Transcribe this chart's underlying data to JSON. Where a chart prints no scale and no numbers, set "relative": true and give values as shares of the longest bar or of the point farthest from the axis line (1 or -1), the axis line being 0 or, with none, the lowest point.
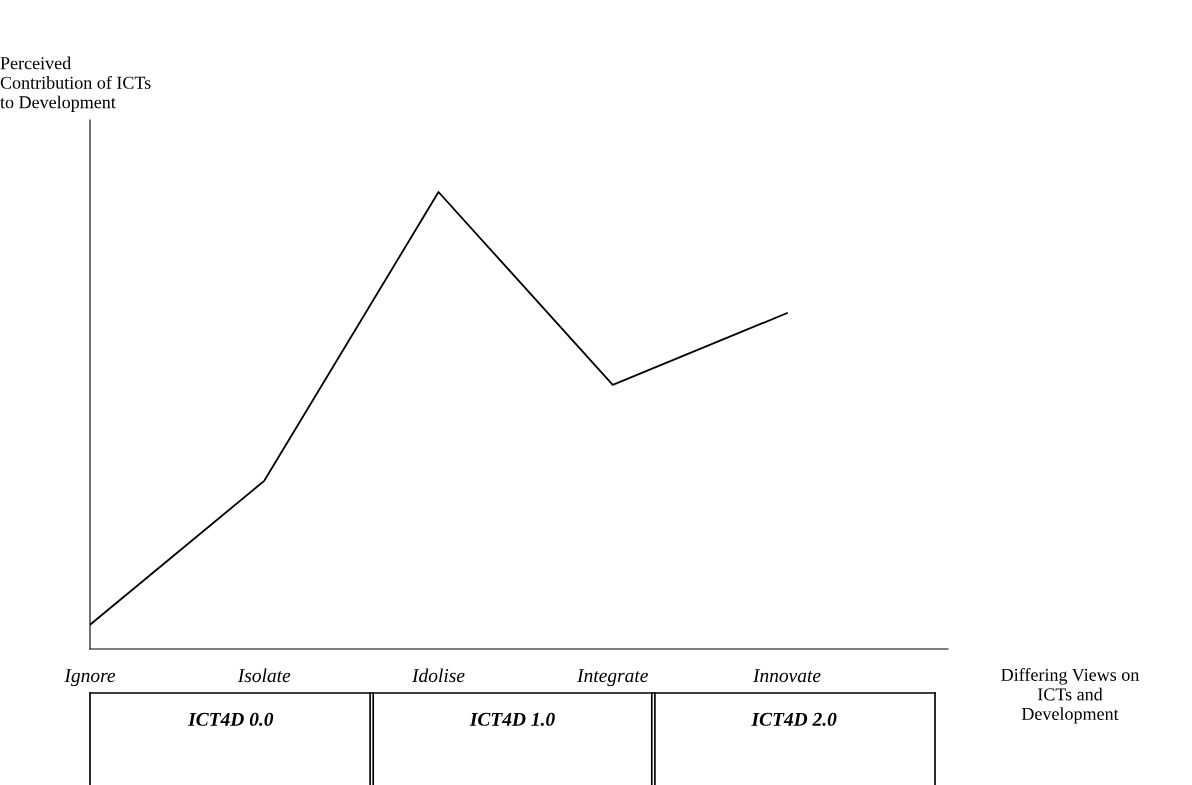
{
  "chart_data": {
    "type": "line",
    "relative": true,
    "xlabel": "Differing Views on\nICTs and\nDevelopment",
    "ylabel": "Perceived\nContribution of ICTs\nto Development",
    "categories": [
      "Ignore",
      "Isolate",
      "Idolise",
      "Integrate",
      "Innovate"
    ],
    "series": [
      {
        "color": "#000000",
        "values": [
          0.053,
          0.368,
          1,
          0.578,
          0.735
        ]
      }
    ],
    "annotations": [
      "ICT4D 0.0",
      "ICT4D 1.0",
      "ICT4D 2.0"
    ],
    "grid": false,
    "legend": false,
    "marker": "none",
    "line_style": "solid"
  }
}
